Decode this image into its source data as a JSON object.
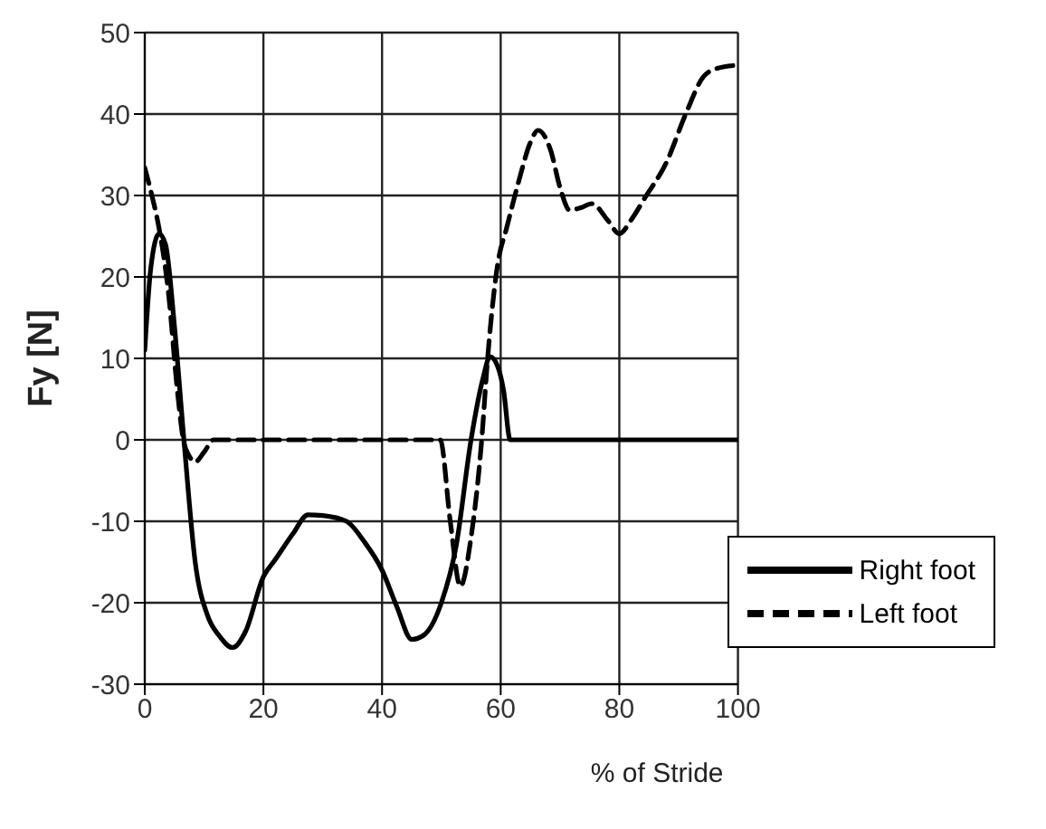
{
  "chart_data": {
    "type": "line",
    "xlabel": "% of Stride",
    "ylabel": "Fy [N]",
    "xlim": [
      0,
      100
    ],
    "xticks": [
      0,
      20,
      40,
      60,
      80,
      100
    ],
    "ylim": [
      -30,
      50
    ],
    "yticks": [
      -30,
      -20,
      -10,
      0,
      10,
      20,
      30,
      40,
      50
    ],
    "grid": true,
    "legend": "bottom right",
    "marker": "none",
    "series": [
      {
        "name": "Right foot",
        "color": "#000000",
        "line_style": "solid",
        "x": [
          0,
          1,
          2.4,
          3.5,
          5,
          6.6,
          8.5,
          10.6,
          12.5,
          14.8,
          17,
          20,
          22,
          25,
          27.5,
          30,
          34,
          37,
          40,
          42.5,
          45,
          47,
          50,
          52.5,
          55,
          57,
          58.2,
          59.5,
          60.5,
          61.6,
          70,
          80,
          90,
          100
        ],
        "values": [
          11,
          21,
          25.3,
          24,
          14,
          0,
          -15,
          -21.6,
          -24,
          -25.5,
          -23.5,
          -16.8,
          -14.7,
          -11.5,
          -9.2,
          -9.3,
          -10,
          -12.5,
          -16,
          -20.5,
          -24.5,
          -24,
          -20,
          -13,
          0,
          7.5,
          10.2,
          9,
          6,
          0,
          0,
          0,
          0,
          0
        ]
      },
      {
        "name": "Left foot",
        "color": "#000000",
        "line_style": "dashed",
        "x": [
          0,
          1.2,
          2.4,
          4,
          5.5,
          6.5,
          7.5,
          8.5,
          10,
          11.6,
          20,
          30,
          40,
          49.8,
          51.5,
          53.2,
          55,
          56.8,
          57.8,
          59.5,
          61,
          63.1,
          65,
          66.3,
          68.4,
          70,
          71.6,
          73.5,
          75.4,
          78,
          80,
          82,
          84.3,
          87.9,
          91.3,
          94.2,
          96.5,
          100
        ],
        "values": [
          33.4,
          30,
          26,
          18,
          6,
          0,
          -2,
          -2.7,
          -1.5,
          0,
          0,
          0,
          0,
          0,
          -10,
          -18,
          -12,
          0,
          10,
          21.6,
          26,
          31.9,
          36.5,
          38,
          35.6,
          31,
          28.2,
          28.5,
          29,
          27,
          25.3,
          27,
          29.7,
          34,
          40.2,
          44.6,
          45.6,
          46
        ]
      }
    ]
  }
}
